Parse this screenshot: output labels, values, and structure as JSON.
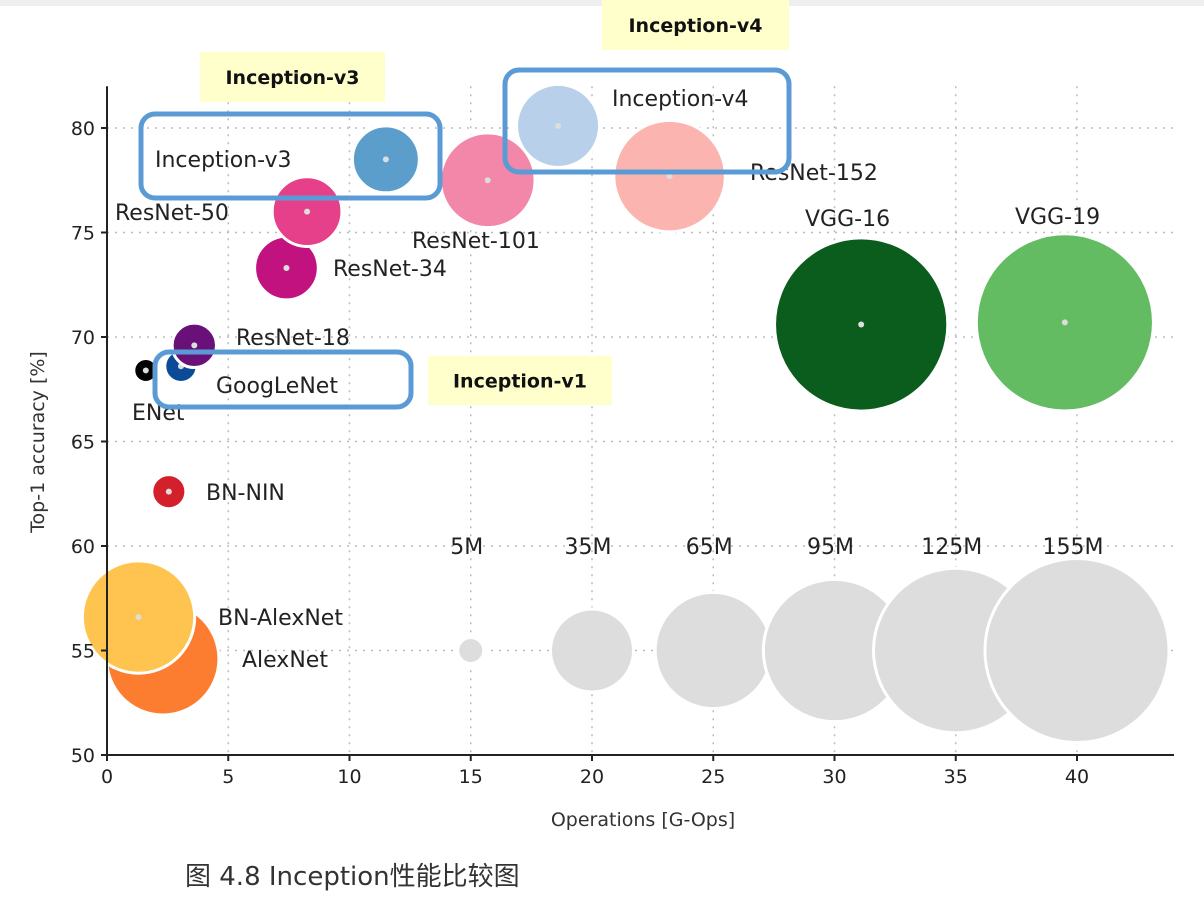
{
  "chart_data": {
    "type": "scatter",
    "subtype": "bubble",
    "xlabel": "Operations [G-Ops]",
    "ylabel": "Top-1 accuracy [%]",
    "xlim": [
      0,
      44
    ],
    "ylim": [
      50,
      82
    ],
    "xticks": [
      0,
      5,
      10,
      15,
      20,
      25,
      30,
      35,
      40
    ],
    "yticks": [
      50,
      55,
      60,
      65,
      70,
      75,
      80
    ],
    "grid": true,
    "points": [
      {
        "name": "AlexNet",
        "x": 2.3,
        "y": 54.6,
        "params_M": 61,
        "color": "#fd7d30"
      },
      {
        "name": "BN-AlexNet",
        "x": 1.3,
        "y": 56.6,
        "params_M": 61,
        "color": "#fec44f"
      },
      {
        "name": "BN-NIN",
        "x": 2.55,
        "y": 62.6,
        "params_M": 7.6,
        "color": "#d4202a"
      },
      {
        "name": "ENet",
        "x": 1.6,
        "y": 68.4,
        "params_M": 0.37,
        "color": "#000000"
      },
      {
        "name": "GoogLeNet",
        "x": 3.05,
        "y": 68.6,
        "params_M": 7,
        "color": "#0b4a97"
      },
      {
        "name": "ResNet-18",
        "x": 3.6,
        "y": 69.6,
        "params_M": 11.7,
        "color": "#6a1079"
      },
      {
        "name": "ResNet-34",
        "x": 7.4,
        "y": 73.3,
        "params_M": 21.8,
        "color": "#c2127f"
      },
      {
        "name": "ResNet-50",
        "x": 8.25,
        "y": 76.0,
        "params_M": 25.6,
        "color": "#e7408a"
      },
      {
        "name": "Inception-v3",
        "x": 11.5,
        "y": 78.5,
        "params_M": 23.8,
        "color": "#5b9ecb"
      },
      {
        "name": "ResNet-101",
        "x": 15.7,
        "y": 77.5,
        "params_M": 44.5,
        "color": "#f287a9"
      },
      {
        "name": "Inception-v4",
        "x": 18.6,
        "y": 80.1,
        "params_M": 35,
        "color": "#b8d0ea"
      },
      {
        "name": "ResNet-152",
        "x": 23.2,
        "y": 77.7,
        "params_M": 60.2,
        "color": "#fbb4b0"
      },
      {
        "name": "VGG-16",
        "x": 31.1,
        "y": 70.6,
        "params_M": 138,
        "color": "#0b5d1e"
      },
      {
        "name": "VGG-19",
        "x": 39.5,
        "y": 70.7,
        "params_M": 144,
        "color": "#63bc62"
      }
    ],
    "size_legend": {
      "y": 55,
      "color": "#dddddd",
      "items": [
        {
          "label": "5M",
          "x": 15,
          "params_M": 5
        },
        {
          "label": "35M",
          "x": 20,
          "params_M": 35
        },
        {
          "label": "65M",
          "x": 25,
          "params_M": 65
        },
        {
          "label": "95M",
          "x": 30,
          "params_M": 95
        },
        {
          "label": "125M",
          "x": 35,
          "params_M": 125
        },
        {
          "label": "155M",
          "x": 40,
          "params_M": 155
        }
      ]
    },
    "annotations": {
      "highlight_color": "#5b9bd5",
      "tag_color": "#ffffcc",
      "tags": [
        "Inception-v3",
        "Inception-v4",
        "Inception-v1"
      ]
    }
  },
  "caption": "图 4.8 Inception性能比较图"
}
